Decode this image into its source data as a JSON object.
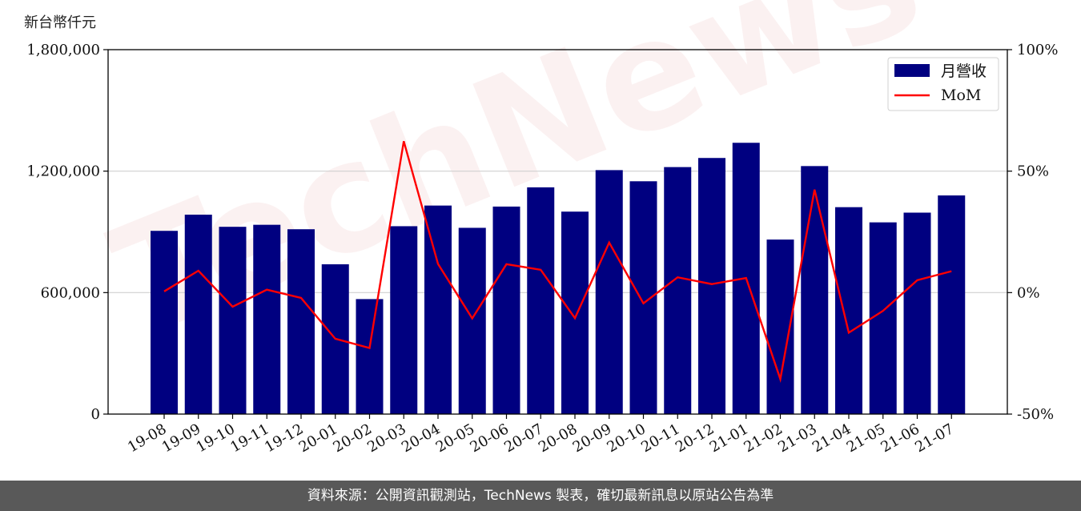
{
  "unit_label": "新台幣仟元",
  "source_text": "資料來源：公開資訊觀測站，TechNews 製表，確切最新訊息以原站公告為準",
  "watermark": "TechNews",
  "colors": {
    "bar": "#000080",
    "line": "#ff0000",
    "grid": "#d0d0d0",
    "footer": "#595959"
  },
  "chart_data": {
    "type": "bar",
    "categories": [
      "19-08",
      "19-09",
      "19-10",
      "19-11",
      "19-12",
      "20-01",
      "20-02",
      "20-03",
      "20-04",
      "20-05",
      "20-06",
      "20-07",
      "20-08",
      "20-09",
      "20-10",
      "20-11",
      "20-12",
      "21-01",
      "21-02",
      "21-03",
      "21-04",
      "21-05",
      "21-06",
      "21-07"
    ],
    "series": [
      {
        "name": "月營收",
        "type": "bar",
        "axis": "left",
        "values": [
          905000,
          985000,
          925000,
          935000,
          913000,
          740000,
          568000,
          928000,
          1030000,
          920000,
          1025000,
          1120000,
          1000000,
          1205000,
          1150000,
          1220000,
          1265000,
          1340000,
          862000,
          1225000,
          1022000,
          947000,
          995000,
          1080000
        ]
      },
      {
        "name": "MoM",
        "type": "line",
        "axis": "right",
        "values": [
          0.5,
          9.0,
          -5.8,
          1.2,
          -2.2,
          -19.0,
          -22.8,
          62.3,
          11.8,
          -10.6,
          11.7,
          9.4,
          -10.5,
          20.6,
          -4.4,
          6.3,
          3.5,
          6.0,
          -35.6,
          42.4,
          -16.5,
          -7.5,
          5.1,
          8.8
        ]
      }
    ],
    "y_left": {
      "min": 0,
      "max": 1800000,
      "ticks": [
        0,
        600000,
        1200000,
        1800000
      ],
      "tick_labels": [
        "0",
        "600,000",
        "1,200,000",
        "1,800,000"
      ]
    },
    "y_right": {
      "min": -50,
      "max": 100,
      "ticks": [
        -50,
        0,
        50,
        100
      ],
      "tick_labels": [
        "-50%",
        "0%",
        "50%",
        "100%"
      ]
    },
    "grid": "horizontal",
    "legend_position": "top-right"
  }
}
